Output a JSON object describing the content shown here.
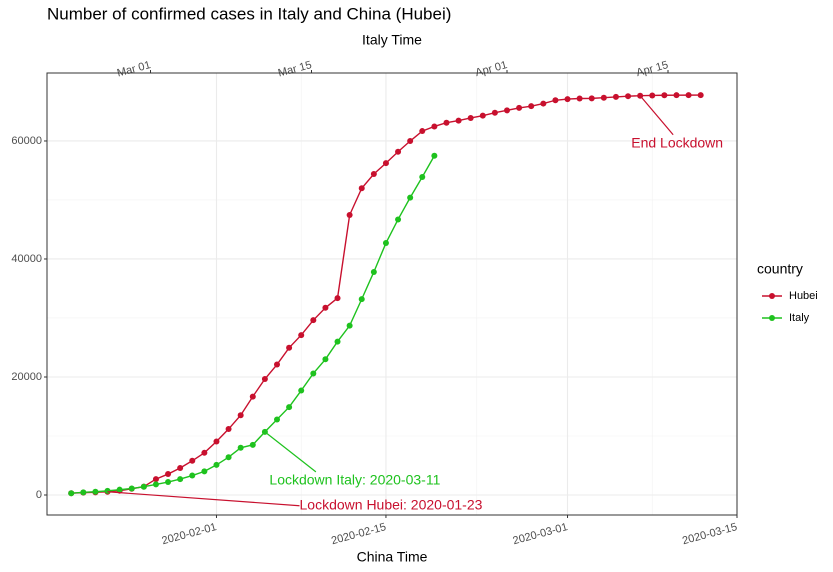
{
  "chart_data": {
    "type": "line",
    "title": "Number of confirmed cases in Italy and China (Hubei)",
    "x2_label": "Italy Time",
    "x_label": "China Time",
    "legend_title": "country",
    "legend": "right",
    "grid": true,
    "xlim": [
      "2020-01-18",
      "2020-03-15"
    ],
    "xticks": [
      "2020-02-01",
      "2020-02-15",
      "2020-03-01",
      "2020-03-15"
    ],
    "x2lim": [
      "2020-02-21",
      "2020-04-21"
    ],
    "x2ticks": [
      {
        "value": "2020-03-01",
        "label": "Mar 01"
      },
      {
        "value": "2020-03-15",
        "label": "Mar 15"
      },
      {
        "value": "2020-04-01",
        "label": "Apr 01"
      },
      {
        "value": "2020-04-15",
        "label": "Apr 15"
      }
    ],
    "ylim": [
      -3390,
      71520
    ],
    "yticks": [
      0,
      20000,
      40000,
      60000
    ],
    "series": [
      {
        "name": "Hubei",
        "color": "#c8102e",
        "x": [
          "2020-01-20",
          "2020-01-21",
          "2020-01-22",
          "2020-01-23",
          "2020-01-24",
          "2020-01-25",
          "2020-01-26",
          "2020-01-27",
          "2020-01-28",
          "2020-01-29",
          "2020-01-30",
          "2020-01-31",
          "2020-02-01",
          "2020-02-02",
          "2020-02-03",
          "2020-02-04",
          "2020-02-05",
          "2020-02-06",
          "2020-02-07",
          "2020-02-08",
          "2020-02-09",
          "2020-02-10",
          "2020-02-11",
          "2020-02-12",
          "2020-02-13",
          "2020-02-14",
          "2020-02-15",
          "2020-02-16",
          "2020-02-17",
          "2020-02-18",
          "2020-02-19",
          "2020-02-20",
          "2020-02-21",
          "2020-02-22",
          "2020-02-23",
          "2020-02-24",
          "2020-02-25",
          "2020-02-26",
          "2020-02-27",
          "2020-02-28",
          "2020-02-29",
          "2020-03-01",
          "2020-03-02",
          "2020-03-03",
          "2020-03-04",
          "2020-03-05",
          "2020-03-06",
          "2020-03-07",
          "2020-03-08",
          "2020-03-09",
          "2020-03-10",
          "2020-03-11",
          "2020-03-12"
        ],
        "values": [
          300,
          400,
          450,
          550,
          730,
          1050,
          1420,
          2700,
          3550,
          4580,
          5800,
          7150,
          9070,
          11180,
          13520,
          16680,
          19660,
          22110,
          24950,
          27100,
          29630,
          31730,
          33370,
          47450,
          51990,
          54400,
          56250,
          58180,
          59990,
          61680,
          62460,
          63090,
          63450,
          63900,
          64290,
          64790,
          65190,
          65600,
          65900,
          66340,
          66900,
          67100,
          67200,
          67220,
          67330,
          67470,
          67590,
          67670,
          67710,
          67750,
          67760,
          67770,
          67780
        ]
      },
      {
        "name": "Italy",
        "color": "#1ec21e",
        "x": [
          "2020-01-20",
          "2020-01-21",
          "2020-01-22",
          "2020-01-23",
          "2020-01-24",
          "2020-01-25",
          "2020-01-26",
          "2020-01-27",
          "2020-01-28",
          "2020-01-29",
          "2020-01-30",
          "2020-01-31",
          "2020-02-01",
          "2020-02-02",
          "2020-02-03",
          "2020-02-04",
          "2020-02-05",
          "2020-02-06",
          "2020-02-07",
          "2020-02-08",
          "2020-02-09",
          "2020-02-10",
          "2020-02-11",
          "2020-02-12",
          "2020-02-13",
          "2020-02-14",
          "2020-02-15",
          "2020-02-16",
          "2020-02-17",
          "2020-02-18",
          "2020-02-19"
        ],
        "values": [
          300,
          450,
          550,
          700,
          900,
          1100,
          1400,
          1800,
          2200,
          2700,
          3300,
          4000,
          5100,
          6400,
          8000,
          8500,
          10700,
          12800,
          14900,
          17700,
          20600,
          23000,
          26000,
          28700,
          33200,
          37800,
          42700,
          46700,
          50400,
          53900,
          57500
        ]
      }
    ],
    "annotations": [
      {
        "text": "Lockdown Hubei: 2020-01-23",
        "x": "2020-01-23",
        "y": 550,
        "color": "#c8102e"
      },
      {
        "text": "Lockdown Italy: 2020-03-11",
        "x": "2020-02-05",
        "y": 10700,
        "color": "#1ec21e"
      },
      {
        "text": "End Lockdown",
        "x": "2020-03-07",
        "y": 67670,
        "color": "#c8102e"
      }
    ]
  }
}
